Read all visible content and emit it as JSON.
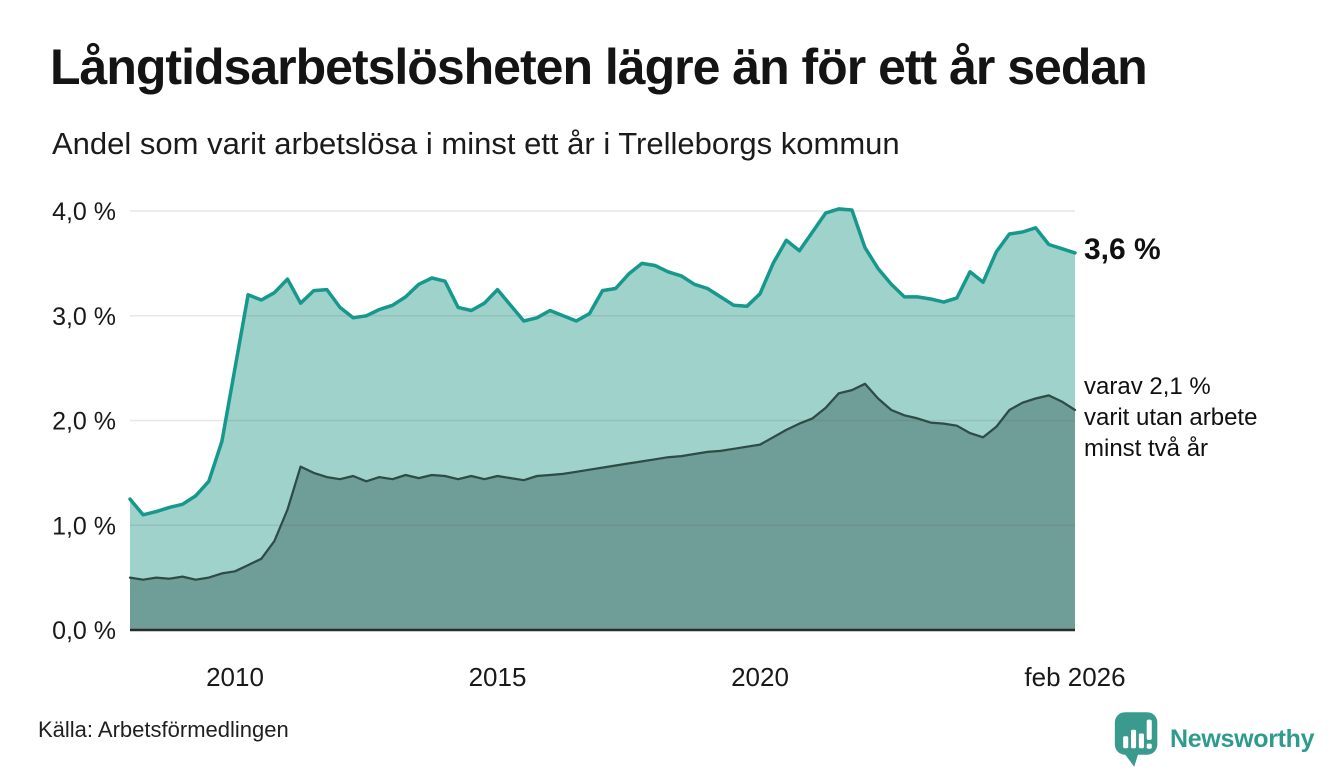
{
  "header": {
    "title": "Långtidsarbetslösheten lägre än för ett år sedan",
    "subtitle": "Andel som varit arbetslösa i minst ett år i Trelleborgs kommun"
  },
  "annotations": {
    "series1_end_label": "3,6 %",
    "series2_label_lines": [
      "varav 2,1 %",
      "varit utan arbete",
      "minst två år"
    ]
  },
  "footer": {
    "source": "Källa: Arbetsförmedlingen",
    "brand_name": "Newsworthy",
    "brand_color": "#3a9a8d"
  },
  "chart_data": {
    "type": "area",
    "title": "Andel som varit arbetslösa i minst ett år i Trelleborgs kommun",
    "unit": "%",
    "x_domain": [
      2008.0,
      2026.0
    ],
    "x_step": 0.25,
    "x_note": "quarterly estimates, Feb 2008 – Feb 2026",
    "ylim": [
      0,
      4.15
    ],
    "grid": true,
    "x_ticks": [
      {
        "x": 2010,
        "label": "2010"
      },
      {
        "x": 2015,
        "label": "2015"
      },
      {
        "x": 2020,
        "label": "2020"
      },
      {
        "x": 2026,
        "label": "feb 2026"
      }
    ],
    "y_ticks": [
      {
        "v": 0,
        "label": "0,0 %"
      },
      {
        "v": 1,
        "label": "1,0 %"
      },
      {
        "v": 2,
        "label": "2,0 %"
      },
      {
        "v": 3,
        "label": "3,0 %"
      },
      {
        "v": 4,
        "label": "4,0 %"
      }
    ],
    "series": [
      {
        "name": "Arbetslösa minst ett år",
        "end_value": 3.6,
        "color": "#16998c",
        "fill": "#9fd2cb",
        "stroke_width": 3.5,
        "values": [
          1.25,
          1.1,
          1.13,
          1.17,
          1.2,
          1.28,
          1.42,
          1.8,
          2.5,
          3.2,
          3.15,
          3.22,
          3.35,
          3.12,
          3.24,
          3.25,
          3.08,
          2.98,
          3.0,
          3.06,
          3.1,
          3.18,
          3.3,
          3.36,
          3.33,
          3.08,
          3.05,
          3.12,
          3.25,
          3.1,
          2.95,
          2.98,
          3.05,
          3.0,
          2.95,
          3.02,
          3.24,
          3.26,
          3.4,
          3.5,
          3.48,
          3.42,
          3.38,
          3.3,
          3.26,
          3.18,
          3.1,
          3.09,
          3.21,
          3.5,
          3.72,
          3.62,
          3.8,
          3.98,
          4.02,
          4.01,
          3.65,
          3.45,
          3.3,
          3.18,
          3.18,
          3.16,
          3.13,
          3.17,
          3.42,
          3.32,
          3.61,
          3.78,
          3.8,
          3.84,
          3.68,
          3.64,
          3.6
        ]
      },
      {
        "name": "varav utan arbete minst två år",
        "end_value": 2.1,
        "color": "#2e4b46",
        "fill": "#6f9d97",
        "stroke_width": 2.25,
        "values": [
          0.5,
          0.48,
          0.5,
          0.49,
          0.51,
          0.48,
          0.5,
          0.54,
          0.56,
          0.62,
          0.68,
          0.85,
          1.15,
          1.56,
          1.5,
          1.46,
          1.44,
          1.47,
          1.42,
          1.46,
          1.44,
          1.48,
          1.45,
          1.48,
          1.47,
          1.44,
          1.47,
          1.44,
          1.47,
          1.45,
          1.43,
          1.47,
          1.48,
          1.49,
          1.51,
          1.53,
          1.55,
          1.57,
          1.59,
          1.61,
          1.63,
          1.65,
          1.66,
          1.68,
          1.7,
          1.71,
          1.73,
          1.75,
          1.77,
          1.84,
          1.91,
          1.97,
          2.02,
          2.12,
          2.26,
          2.29,
          2.35,
          2.21,
          2.1,
          2.05,
          2.02,
          1.98,
          1.97,
          1.95,
          1.88,
          1.84,
          1.94,
          2.1,
          2.17,
          2.21,
          2.24,
          2.18,
          2.1
        ]
      }
    ]
  }
}
